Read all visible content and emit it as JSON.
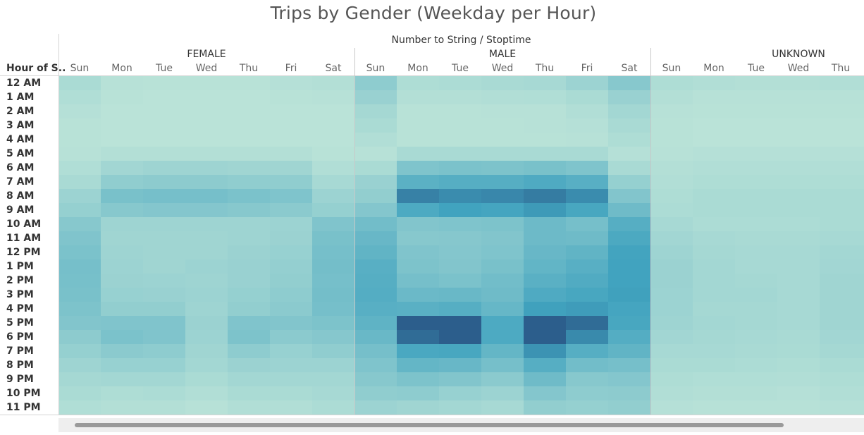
{
  "chart_data": {
    "type": "heatmap",
    "title": "Trips by Gender (Weekday per Hour)",
    "header_caption": "Number to String / Stoptime",
    "row_header": "Hour of S..",
    "rows": [
      "12 AM",
      "1 AM",
      "2 AM",
      "3 AM",
      "4 AM",
      "5 AM",
      "6 AM",
      "7 AM",
      "8 AM",
      "9 AM",
      "10 AM",
      "11 AM",
      "12 PM",
      "1 PM",
      "2 PM",
      "3 PM",
      "4 PM",
      "5 PM",
      "6 PM",
      "7 PM",
      "8 PM",
      "9 PM",
      "10 PM",
      "11 PM"
    ],
    "value_note": "relative intensity 0-100",
    "color_low": "#bce4d8",
    "color_mid": "#41a3bf",
    "color_high": "#2c5e8c",
    "groups": [
      {
        "name": "FEMALE",
        "columns": [
          "Sun",
          "Mon",
          "Tue",
          "Wed",
          "Thu",
          "Fri",
          "Sat"
        ],
        "values": [
          [
            10,
            3,
            2,
            2,
            2,
            4,
            5
          ],
          [
            7,
            2,
            1,
            1,
            1,
            2,
            3
          ],
          [
            4,
            1,
            1,
            1,
            1,
            1,
            1
          ],
          [
            2,
            1,
            1,
            1,
            1,
            1,
            1
          ],
          [
            2,
            1,
            1,
            1,
            1,
            1,
            1
          ],
          [
            3,
            5,
            5,
            5,
            5,
            5,
            2
          ],
          [
            7,
            15,
            17,
            17,
            16,
            16,
            6
          ],
          [
            11,
            25,
            27,
            27,
            25,
            25,
            12
          ],
          [
            18,
            38,
            40,
            40,
            37,
            35,
            18
          ],
          [
            22,
            30,
            32,
            32,
            30,
            28,
            22
          ],
          [
            30,
            17,
            17,
            17,
            17,
            18,
            34
          ],
          [
            34,
            16,
            16,
            16,
            17,
            19,
            38
          ],
          [
            37,
            17,
            16,
            16,
            19,
            21,
            40
          ],
          [
            40,
            18,
            16,
            18,
            20,
            23,
            41
          ],
          [
            39,
            19,
            18,
            17,
            20,
            24,
            40
          ],
          [
            38,
            21,
            20,
            18,
            22,
            26,
            41
          ],
          [
            36,
            24,
            24,
            17,
            24,
            28,
            40
          ],
          [
            33,
            34,
            34,
            19,
            34,
            33,
            36
          ],
          [
            27,
            37,
            34,
            18,
            36,
            28,
            31
          ],
          [
            22,
            28,
            26,
            16,
            26,
            21,
            25
          ],
          [
            17,
            21,
            21,
            14,
            19,
            18,
            18
          ],
          [
            13,
            14,
            14,
            10,
            14,
            14,
            14
          ],
          [
            10,
            8,
            9,
            6,
            10,
            10,
            12
          ],
          [
            7,
            5,
            5,
            3,
            6,
            6,
            9
          ]
        ]
      },
      {
        "name": "MALE",
        "columns": [
          "Sun",
          "Mon",
          "Tue",
          "Wed",
          "Thu",
          "Fri",
          "Sat"
        ],
        "values": [
          [
            26,
            8,
            9,
            11,
            12,
            18,
            30
          ],
          [
            20,
            5,
            5,
            6,
            7,
            10,
            20
          ],
          [
            13,
            2,
            2,
            3,
            3,
            6,
            14
          ],
          [
            10,
            2,
            2,
            2,
            3,
            4,
            11
          ],
          [
            6,
            2,
            2,
            2,
            2,
            3,
            8
          ],
          [
            3,
            11,
            11,
            11,
            11,
            11,
            4
          ],
          [
            10,
            35,
            37,
            36,
            38,
            35,
            11
          ],
          [
            20,
            55,
            58,
            58,
            62,
            57,
            22
          ],
          [
            24,
            85,
            80,
            82,
            87,
            80,
            33
          ],
          [
            32,
            63,
            70,
            68,
            74,
            66,
            44
          ],
          [
            42,
            33,
            35,
            36,
            45,
            40,
            58
          ],
          [
            48,
            30,
            31,
            33,
            45,
            44,
            64
          ],
          [
            52,
            34,
            32,
            35,
            48,
            52,
            69
          ],
          [
            57,
            36,
            33,
            38,
            51,
            57,
            70
          ],
          [
            58,
            40,
            37,
            42,
            56,
            61,
            70
          ],
          [
            59,
            46,
            47,
            44,
            62,
            66,
            71
          ],
          [
            57,
            56,
            58,
            49,
            71,
            73,
            68
          ],
          [
            53,
            102,
            106,
            63,
            120,
            94,
            66
          ],
          [
            47,
            94,
            102,
            63,
            108,
            81,
            59
          ],
          [
            40,
            65,
            66,
            50,
            77,
            58,
            52
          ],
          [
            35,
            50,
            48,
            40,
            58,
            42,
            40
          ],
          [
            30,
            36,
            33,
            28,
            44,
            30,
            32
          ],
          [
            25,
            26,
            21,
            18,
            32,
            26,
            27
          ],
          [
            18,
            16,
            14,
            12,
            24,
            22,
            24
          ]
        ]
      },
      {
        "name": "UNKNOWN",
        "columns": [
          "Sun",
          "Mon",
          "Tue",
          "Wed",
          "Thu"
        ],
        "values": [
          [
            8,
            6,
            5,
            5,
            6
          ],
          [
            5,
            3,
            3,
            3,
            3
          ],
          [
            3,
            2,
            2,
            2,
            2
          ],
          [
            2,
            1,
            1,
            1,
            1
          ],
          [
            2,
            1,
            1,
            1,
            1
          ],
          [
            3,
            4,
            4,
            4,
            4
          ],
          [
            5,
            6,
            6,
            6,
            6
          ],
          [
            6,
            8,
            8,
            8,
            8
          ],
          [
            8,
            10,
            10,
            10,
            10
          ],
          [
            9,
            10,
            10,
            10,
            10
          ],
          [
            12,
            9,
            9,
            9,
            10
          ],
          [
            15,
            12,
            11,
            11,
            12
          ],
          [
            17,
            13,
            12,
            12,
            14
          ],
          [
            19,
            14,
            12,
            12,
            15
          ],
          [
            19,
            14,
            13,
            12,
            16
          ],
          [
            18,
            14,
            14,
            12,
            16
          ],
          [
            18,
            13,
            13,
            12,
            16
          ],
          [
            17,
            14,
            13,
            12,
            16
          ],
          [
            15,
            13,
            12,
            11,
            15
          ],
          [
            12,
            12,
            11,
            10,
            13
          ],
          [
            10,
            10,
            9,
            8,
            10
          ],
          [
            8,
            7,
            7,
            6,
            8
          ],
          [
            6,
            5,
            5,
            4,
            6
          ],
          [
            4,
            3,
            3,
            3,
            4
          ]
        ]
      }
    ]
  },
  "scrollbar": {
    "position": 0.02,
    "visible_fraction": 0.88
  }
}
